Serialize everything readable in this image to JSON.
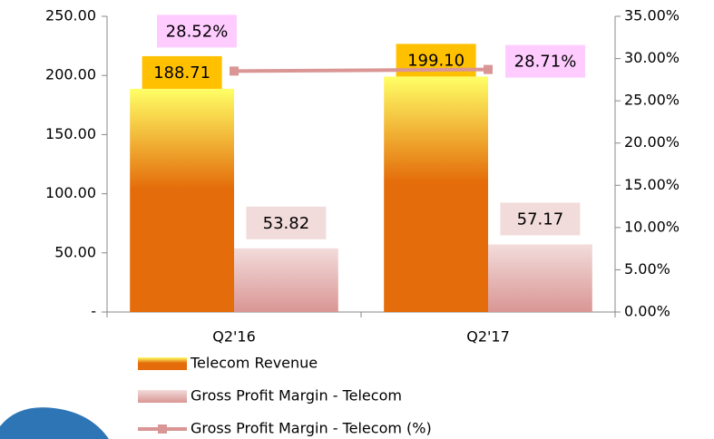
{
  "chart_data": {
    "type": "bar",
    "categories": [
      "Q2'16",
      "Q2'17"
    ],
    "series": [
      {
        "name": "Telecom Revenue",
        "color": "#e46c0a",
        "values": [
          188.71,
          199.1
        ],
        "value_labels": [
          "188.71",
          "199.10"
        ]
      },
      {
        "name": "Gross Profit Margin - Telecom",
        "color": "#d99694",
        "values": [
          53.82,
          57.17
        ],
        "value_labels": [
          "53.82",
          "57.17"
        ]
      },
      {
        "name": "Gross Profit Margin - Telecom (%)",
        "color": "#d99694",
        "type": "line",
        "axis": "y2",
        "values": [
          28.52,
          28.71
        ],
        "value_labels": [
          "28.52%",
          "28.71%"
        ]
      }
    ],
    "ylim": [
      0,
      250
    ],
    "yticks": [
      {
        "value": 0,
        "label": "-"
      },
      {
        "value": 50,
        "label": "50.00"
      },
      {
        "value": 100,
        "label": "100.00"
      },
      {
        "value": 150,
        "label": "150.00"
      },
      {
        "value": 200,
        "label": "200.00"
      },
      {
        "value": 250,
        "label": "250.00"
      }
    ],
    "y2lim": [
      0,
      35
    ],
    "y2ticks": [
      {
        "value": 0,
        "label": "0.00%"
      },
      {
        "value": 5,
        "label": "5.00%"
      },
      {
        "value": 10,
        "label": "10.00%"
      },
      {
        "value": 15,
        "label": "15.00%"
      },
      {
        "value": 20,
        "label": "20.00%"
      },
      {
        "value": 25,
        "label": "25.00%"
      },
      {
        "value": 30,
        "label": "30.00%"
      },
      {
        "value": 35,
        "label": "35.00%"
      }
    ],
    "grid": false
  }
}
